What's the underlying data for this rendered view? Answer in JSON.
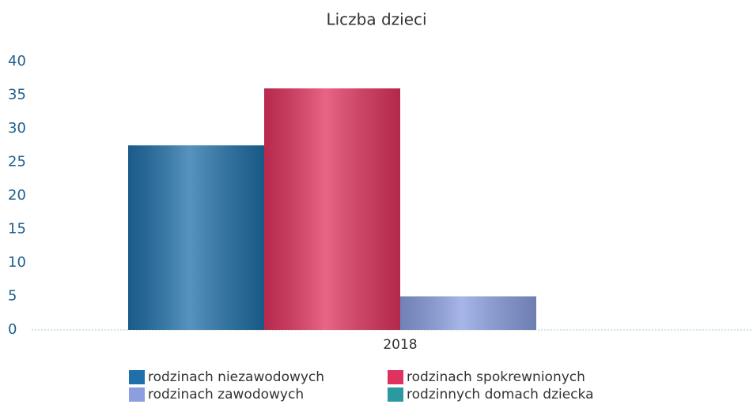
{
  "chart_data": {
    "type": "bar",
    "title": "Liczba dzieci",
    "categories": [
      "2018"
    ],
    "series": [
      {
        "name": "rodzinach niezawodowych",
        "color": "#1f6fa8",
        "values": [
          27.5
        ]
      },
      {
        "name": "rodzinach spokrewnionych",
        "color": "#e0325e",
        "values": [
          36
        ]
      },
      {
        "name": "rodzinach zawodowych",
        "color": "#8a9ee0",
        "values": [
          5
        ]
      },
      {
        "name": "rodzinnych domach dziecka",
        "color": "#2a9aa0",
        "values": [
          0
        ]
      }
    ],
    "ylim": [
      0,
      40
    ],
    "yticks": [
      0,
      5,
      10,
      15,
      20,
      25,
      30,
      35,
      40
    ],
    "grid": false,
    "legend": "bottom"
  }
}
